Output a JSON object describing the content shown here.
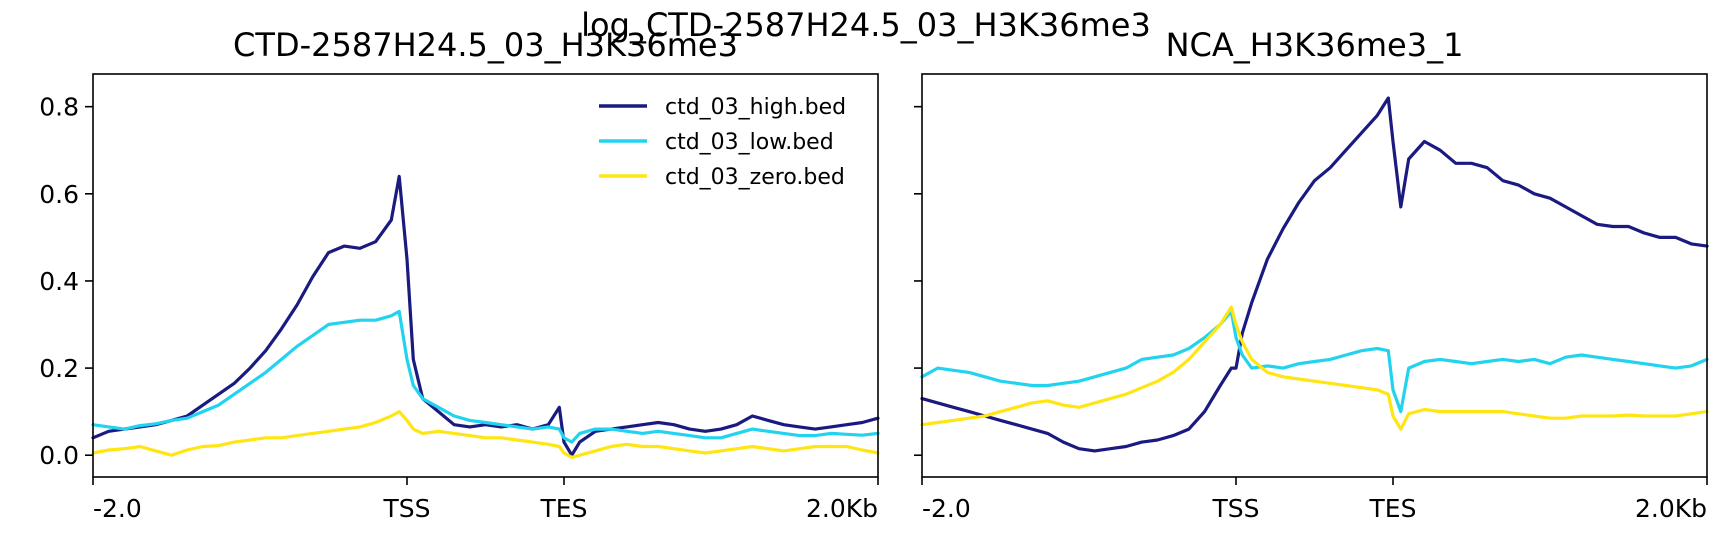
{
  "figure": {
    "suptitle": "log_CTD-2587H24.5_03_H3K36me3"
  },
  "colors": {
    "high": "#1a1a80",
    "low": "#22d3f0",
    "zero": "#ffe512"
  },
  "chart_data": [
    {
      "type": "line",
      "title": "CTD-2587H24.5_03_H3K36me3",
      "xlabel": "",
      "ylabel": "",
      "ylim": [
        -0.05,
        0.875
      ],
      "yticks": [
        0.0,
        0.2,
        0.4,
        0.6,
        0.8
      ],
      "ytick_labels": [
        "0.0",
        "0.2",
        "0.4",
        "0.6",
        "0.8"
      ],
      "xticks": [
        0,
        20,
        30,
        50
      ],
      "xtick_labels": [
        "-2.0",
        "TSS",
        "TES",
        "2.0Kb"
      ],
      "xlim": [
        0,
        50
      ],
      "legend": "top-right",
      "series": [
        {
          "name": "ctd_03_high.bed",
          "color": "#1a1a80",
          "x": [
            0,
            1,
            2,
            3,
            4,
            5,
            6,
            7,
            8,
            9,
            10,
            11,
            12,
            13,
            14,
            15,
            16,
            17,
            18,
            19,
            19.5,
            20,
            20.4,
            21,
            22,
            23,
            24,
            25,
            26,
            27,
            28,
            29,
            29.7,
            30,
            30.5,
            31,
            32,
            33,
            34,
            35,
            36,
            37,
            38,
            39,
            40,
            41,
            42,
            43,
            44,
            45,
            46,
            47,
            48,
            49,
            50
          ],
          "values": [
            0.04,
            0.055,
            0.06,
            0.065,
            0.07,
            0.08,
            0.09,
            0.115,
            0.14,
            0.165,
            0.2,
            0.24,
            0.29,
            0.345,
            0.41,
            0.465,
            0.48,
            0.475,
            0.49,
            0.54,
            0.64,
            0.45,
            0.22,
            0.13,
            0.1,
            0.07,
            0.065,
            0.07,
            0.065,
            0.07,
            0.06,
            0.07,
            0.11,
            0.03,
            0.0,
            0.03,
            0.055,
            0.06,
            0.065,
            0.07,
            0.075,
            0.07,
            0.06,
            0.055,
            0.06,
            0.07,
            0.09,
            0.08,
            0.07,
            0.065,
            0.06,
            0.065,
            0.07,
            0.075,
            0.085
          ]
        },
        {
          "name": "ctd_03_low.bed",
          "color": "#22d3f0",
          "x": [
            0,
            1,
            2,
            3,
            4,
            5,
            6,
            7,
            8,
            9,
            10,
            11,
            12,
            13,
            14,
            15,
            16,
            17,
            18,
            19,
            19.5,
            20,
            20.4,
            21,
            22,
            23,
            24,
            25,
            26,
            27,
            28,
            29,
            29.7,
            30,
            30.5,
            31,
            32,
            33,
            34,
            35,
            36,
            37,
            38,
            39,
            40,
            41,
            42,
            43,
            44,
            45,
            46,
            47,
            48,
            49,
            50
          ],
          "values": [
            0.07,
            0.065,
            0.06,
            0.068,
            0.072,
            0.08,
            0.085,
            0.1,
            0.115,
            0.14,
            0.165,
            0.19,
            0.22,
            0.25,
            0.275,
            0.3,
            0.305,
            0.31,
            0.31,
            0.32,
            0.33,
            0.22,
            0.16,
            0.13,
            0.11,
            0.09,
            0.08,
            0.075,
            0.07,
            0.065,
            0.06,
            0.065,
            0.06,
            0.04,
            0.03,
            0.05,
            0.06,
            0.06,
            0.055,
            0.05,
            0.055,
            0.05,
            0.045,
            0.04,
            0.04,
            0.05,
            0.06,
            0.055,
            0.05,
            0.045,
            0.045,
            0.05,
            0.048,
            0.046,
            0.05
          ]
        },
        {
          "name": "ctd_03_zero.bed",
          "color": "#ffe512",
          "x": [
            0,
            1,
            2,
            3,
            4,
            5,
            6,
            7,
            8,
            9,
            10,
            11,
            12,
            13,
            14,
            15,
            16,
            17,
            18,
            19,
            19.5,
            20,
            20.4,
            21,
            22,
            23,
            24,
            25,
            26,
            27,
            28,
            29,
            29.7,
            30,
            30.5,
            31,
            32,
            33,
            34,
            35,
            36,
            37,
            38,
            39,
            40,
            41,
            42,
            43,
            44,
            45,
            46,
            47,
            48,
            49,
            50
          ],
          "values": [
            0.005,
            0.012,
            0.015,
            0.02,
            0.01,
            0.0,
            0.012,
            0.02,
            0.022,
            0.03,
            0.035,
            0.04,
            0.04,
            0.045,
            0.05,
            0.055,
            0.06,
            0.065,
            0.075,
            0.09,
            0.1,
            0.08,
            0.06,
            0.05,
            0.055,
            0.05,
            0.045,
            0.04,
            0.04,
            0.035,
            0.03,
            0.025,
            0.02,
            0.005,
            -0.005,
            0.0,
            0.01,
            0.02,
            0.025,
            0.02,
            0.02,
            0.015,
            0.01,
            0.005,
            0.01,
            0.015,
            0.02,
            0.015,
            0.01,
            0.015,
            0.02,
            0.02,
            0.02,
            0.012,
            0.005
          ]
        }
      ]
    },
    {
      "type": "line",
      "title": "NCA_H3K36me3_1",
      "xlabel": "",
      "ylabel": "",
      "ylim": [
        -0.05,
        0.875
      ],
      "yticks": [
        0.0,
        0.2,
        0.4,
        0.6,
        0.8
      ],
      "ytick_labels": [
        "",
        "",
        "",
        "",
        ""
      ],
      "xticks": [
        0,
        20,
        30,
        50
      ],
      "xtick_labels": [
        "-2.0",
        "TSS",
        "TES",
        "2.0Kb"
      ],
      "xlim": [
        0,
        50
      ],
      "legend": "none",
      "series": [
        {
          "name": "ctd_03_high.bed",
          "color": "#1a1a80",
          "x": [
            0,
            1,
            2,
            3,
            4,
            5,
            6,
            7,
            8,
            9,
            10,
            11,
            12,
            13,
            14,
            15,
            16,
            17,
            18,
            19,
            19.7,
            20,
            20.4,
            21,
            22,
            23,
            24,
            25,
            26,
            27,
            28,
            29,
            29.7,
            30,
            30.5,
            31,
            32,
            33,
            34,
            35,
            36,
            37,
            38,
            39,
            40,
            41,
            42,
            43,
            44,
            45,
            46,
            47,
            48,
            49,
            50
          ],
          "values": [
            0.13,
            0.12,
            0.11,
            0.1,
            0.09,
            0.08,
            0.07,
            0.06,
            0.05,
            0.03,
            0.015,
            0.01,
            0.015,
            0.02,
            0.03,
            0.035,
            0.045,
            0.06,
            0.1,
            0.16,
            0.2,
            0.2,
            0.28,
            0.35,
            0.45,
            0.52,
            0.58,
            0.63,
            0.66,
            0.7,
            0.74,
            0.78,
            0.82,
            0.72,
            0.57,
            0.68,
            0.72,
            0.7,
            0.67,
            0.67,
            0.66,
            0.63,
            0.62,
            0.6,
            0.59,
            0.57,
            0.55,
            0.53,
            0.525,
            0.525,
            0.51,
            0.5,
            0.5,
            0.485,
            0.48
          ]
        },
        {
          "name": "ctd_03_low.bed",
          "color": "#22d3f0",
          "x": [
            0,
            1,
            2,
            3,
            4,
            5,
            6,
            7,
            8,
            9,
            10,
            11,
            12,
            13,
            14,
            15,
            16,
            17,
            18,
            19,
            19.7,
            20,
            20.4,
            21,
            22,
            23,
            24,
            25,
            26,
            27,
            28,
            29,
            29.7,
            30,
            30.5,
            31,
            32,
            33,
            34,
            35,
            36,
            37,
            38,
            39,
            40,
            41,
            42,
            43,
            44,
            45,
            46,
            47,
            48,
            49,
            50
          ],
          "values": [
            0.18,
            0.2,
            0.195,
            0.19,
            0.18,
            0.17,
            0.165,
            0.16,
            0.16,
            0.165,
            0.17,
            0.18,
            0.19,
            0.2,
            0.22,
            0.225,
            0.23,
            0.245,
            0.27,
            0.3,
            0.33,
            0.27,
            0.23,
            0.2,
            0.205,
            0.2,
            0.21,
            0.215,
            0.22,
            0.23,
            0.24,
            0.245,
            0.24,
            0.15,
            0.1,
            0.2,
            0.215,
            0.22,
            0.215,
            0.21,
            0.215,
            0.22,
            0.215,
            0.22,
            0.21,
            0.225,
            0.23,
            0.225,
            0.22,
            0.215,
            0.21,
            0.205,
            0.2,
            0.205,
            0.22
          ]
        },
        {
          "name": "ctd_03_zero.bed",
          "color": "#ffe512",
          "x": [
            0,
            1,
            2,
            3,
            4,
            5,
            6,
            7,
            8,
            9,
            10,
            11,
            12,
            13,
            14,
            15,
            16,
            17,
            18,
            19,
            19.7,
            20,
            20.4,
            21,
            22,
            23,
            24,
            25,
            26,
            27,
            28,
            29,
            29.7,
            30,
            30.5,
            31,
            32,
            33,
            34,
            35,
            36,
            37,
            38,
            39,
            40,
            41,
            42,
            43,
            44,
            45,
            46,
            47,
            48,
            49,
            50
          ],
          "values": [
            0.07,
            0.075,
            0.08,
            0.085,
            0.09,
            0.1,
            0.11,
            0.12,
            0.125,
            0.115,
            0.11,
            0.12,
            0.13,
            0.14,
            0.155,
            0.17,
            0.19,
            0.22,
            0.26,
            0.3,
            0.34,
            0.3,
            0.26,
            0.22,
            0.19,
            0.18,
            0.175,
            0.17,
            0.165,
            0.16,
            0.155,
            0.15,
            0.14,
            0.09,
            0.06,
            0.095,
            0.105,
            0.1,
            0.1,
            0.1,
            0.1,
            0.1,
            0.095,
            0.09,
            0.085,
            0.085,
            0.09,
            0.09,
            0.09,
            0.092,
            0.09,
            0.09,
            0.09,
            0.095,
            0.1
          ]
        }
      ]
    }
  ]
}
